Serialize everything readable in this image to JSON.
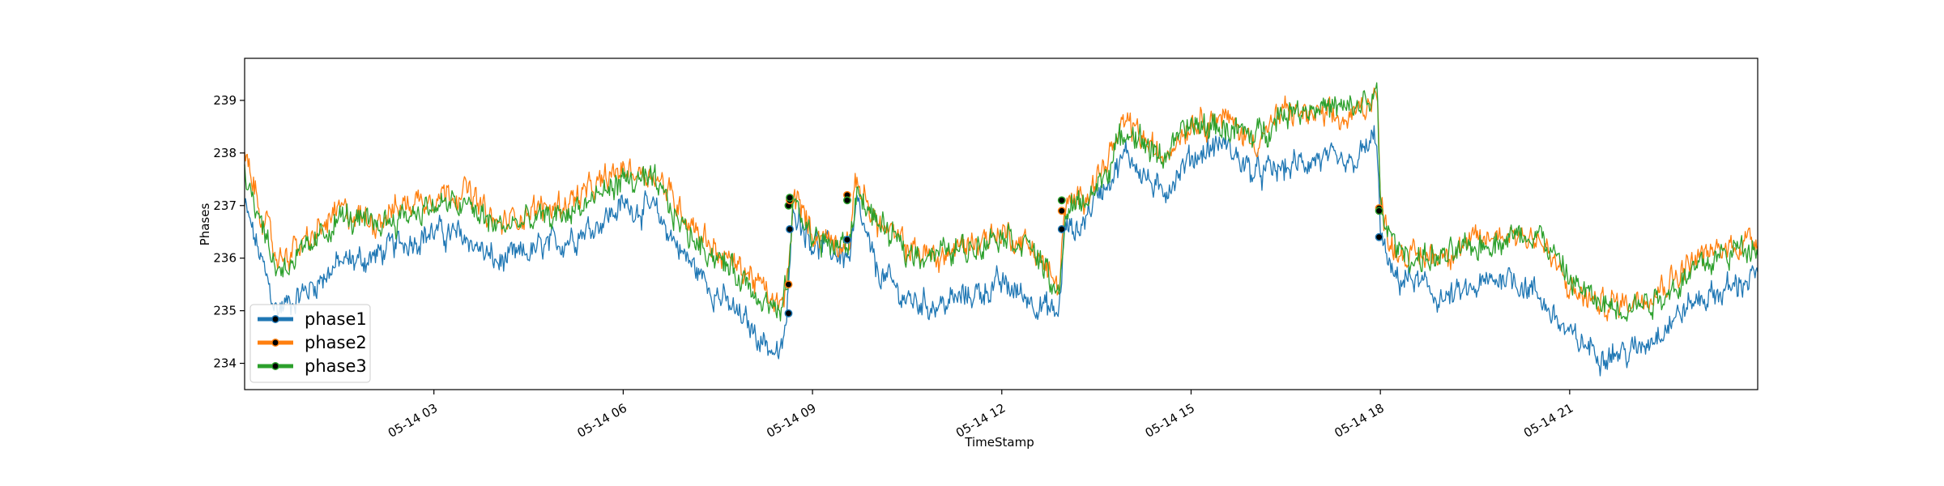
{
  "chart_data": {
    "type": "line",
    "title": "",
    "xlabel": "TimeStamp",
    "ylabel": "Phases",
    "x_range": [
      "05-14 00:00",
      "05-14 23:59"
    ],
    "ylim": [
      233.5,
      239.8
    ],
    "grid": false,
    "legend_position": "lower-left",
    "x_ticks": [
      "05-14 03",
      "05-14 06",
      "05-14 09",
      "05-14 12",
      "05-14 15",
      "05-14 18",
      "05-14 21"
    ],
    "y_ticks": [
      "234",
      "235",
      "236",
      "237",
      "238",
      "239"
    ],
    "x_hours": [
      0,
      0.5,
      1,
      1.5,
      2,
      2.5,
      3,
      3.5,
      4,
      4.5,
      5,
      5.5,
      6,
      6.5,
      7,
      7.5,
      8,
      8.5,
      8.6,
      8.7,
      9,
      9.4,
      9.6,
      9.7,
      10,
      10.5,
      11,
      11.5,
      12,
      12.5,
      12.9,
      13.0,
      13.2,
      13.5,
      14,
      14.5,
      15,
      15.5,
      16,
      16.5,
      17,
      17.5,
      17.95,
      18.0,
      18.2,
      18.5,
      19,
      19.5,
      20,
      20.5,
      21,
      21.5,
      22,
      22.5,
      23,
      23.5,
      23.98
    ],
    "series": [
      {
        "name": "phase1",
        "color": "#1f77b4",
        "values": [
          237.0,
          235.0,
          235.4,
          235.9,
          236.0,
          236.3,
          236.5,
          236.4,
          235.9,
          236.1,
          236.3,
          236.6,
          237.0,
          236.9,
          236.0,
          235.3,
          234.7,
          234.1,
          235.0,
          237.0,
          236.3,
          236.1,
          236.0,
          237.0,
          235.8,
          235.2,
          235.1,
          235.3,
          235.5,
          235.2,
          234.9,
          236.6,
          236.5,
          237.2,
          238.0,
          237.2,
          237.9,
          238.2,
          237.6,
          237.7,
          237.9,
          237.7,
          238.3,
          236.4,
          235.6,
          235.6,
          235.2,
          235.4,
          235.7,
          235.3,
          234.5,
          234.2,
          234.2,
          234.7,
          235.2,
          235.4,
          235.7
        ]
      },
      {
        "name": "phase2",
        "color": "#ff7f0e",
        "values": [
          237.9,
          236.0,
          236.3,
          236.9,
          236.7,
          237.0,
          237.2,
          237.3,
          236.6,
          236.9,
          237.0,
          237.3,
          237.7,
          237.6,
          236.8,
          236.1,
          235.7,
          235.0,
          235.5,
          237.2,
          236.5,
          236.3,
          236.4,
          237.5,
          236.7,
          236.2,
          236.0,
          236.3,
          236.5,
          236.2,
          235.4,
          236.9,
          237.1,
          237.5,
          238.6,
          237.9,
          238.6,
          238.7,
          238.2,
          238.8,
          238.7,
          238.6,
          239.2,
          237.0,
          236.2,
          236.0,
          236.1,
          236.3,
          236.5,
          236.4,
          235.4,
          235.1,
          235.2,
          235.5,
          236.0,
          236.2,
          236.4
        ]
      },
      {
        "name": "phase3",
        "color": "#2ca02c",
        "values": [
          237.7,
          235.8,
          236.1,
          236.8,
          236.6,
          236.8,
          237.0,
          237.0,
          236.6,
          236.7,
          236.8,
          237.1,
          237.5,
          237.4,
          236.5,
          236.0,
          235.5,
          234.9,
          235.5,
          237.1,
          236.4,
          236.2,
          236.3,
          237.3,
          236.7,
          236.1,
          236.1,
          236.2,
          236.5,
          236.2,
          235.2,
          236.8,
          237.0,
          237.3,
          238.5,
          237.9,
          238.5,
          238.5,
          238.3,
          238.8,
          238.9,
          238.8,
          239.1,
          236.9,
          236.3,
          236.0,
          236.0,
          236.2,
          236.4,
          236.5,
          235.6,
          235.1,
          235.1,
          235.3,
          235.8,
          236.1,
          236.3
        ]
      }
    ],
    "markers": [
      {
        "x": 8.62,
        "values": [
          234.95,
          235.5,
          237.0
        ]
      },
      {
        "x": 8.64,
        "values": [
          236.55,
          237.1,
          237.15
        ]
      },
      {
        "x": 9.55,
        "values": [
          236.35,
          237.2,
          237.1
        ]
      },
      {
        "x": 12.95,
        "values": [
          236.55,
          236.9,
          237.1
        ]
      },
      {
        "x": 17.98,
        "values": [
          236.4,
          236.95,
          236.9
        ]
      }
    ]
  }
}
